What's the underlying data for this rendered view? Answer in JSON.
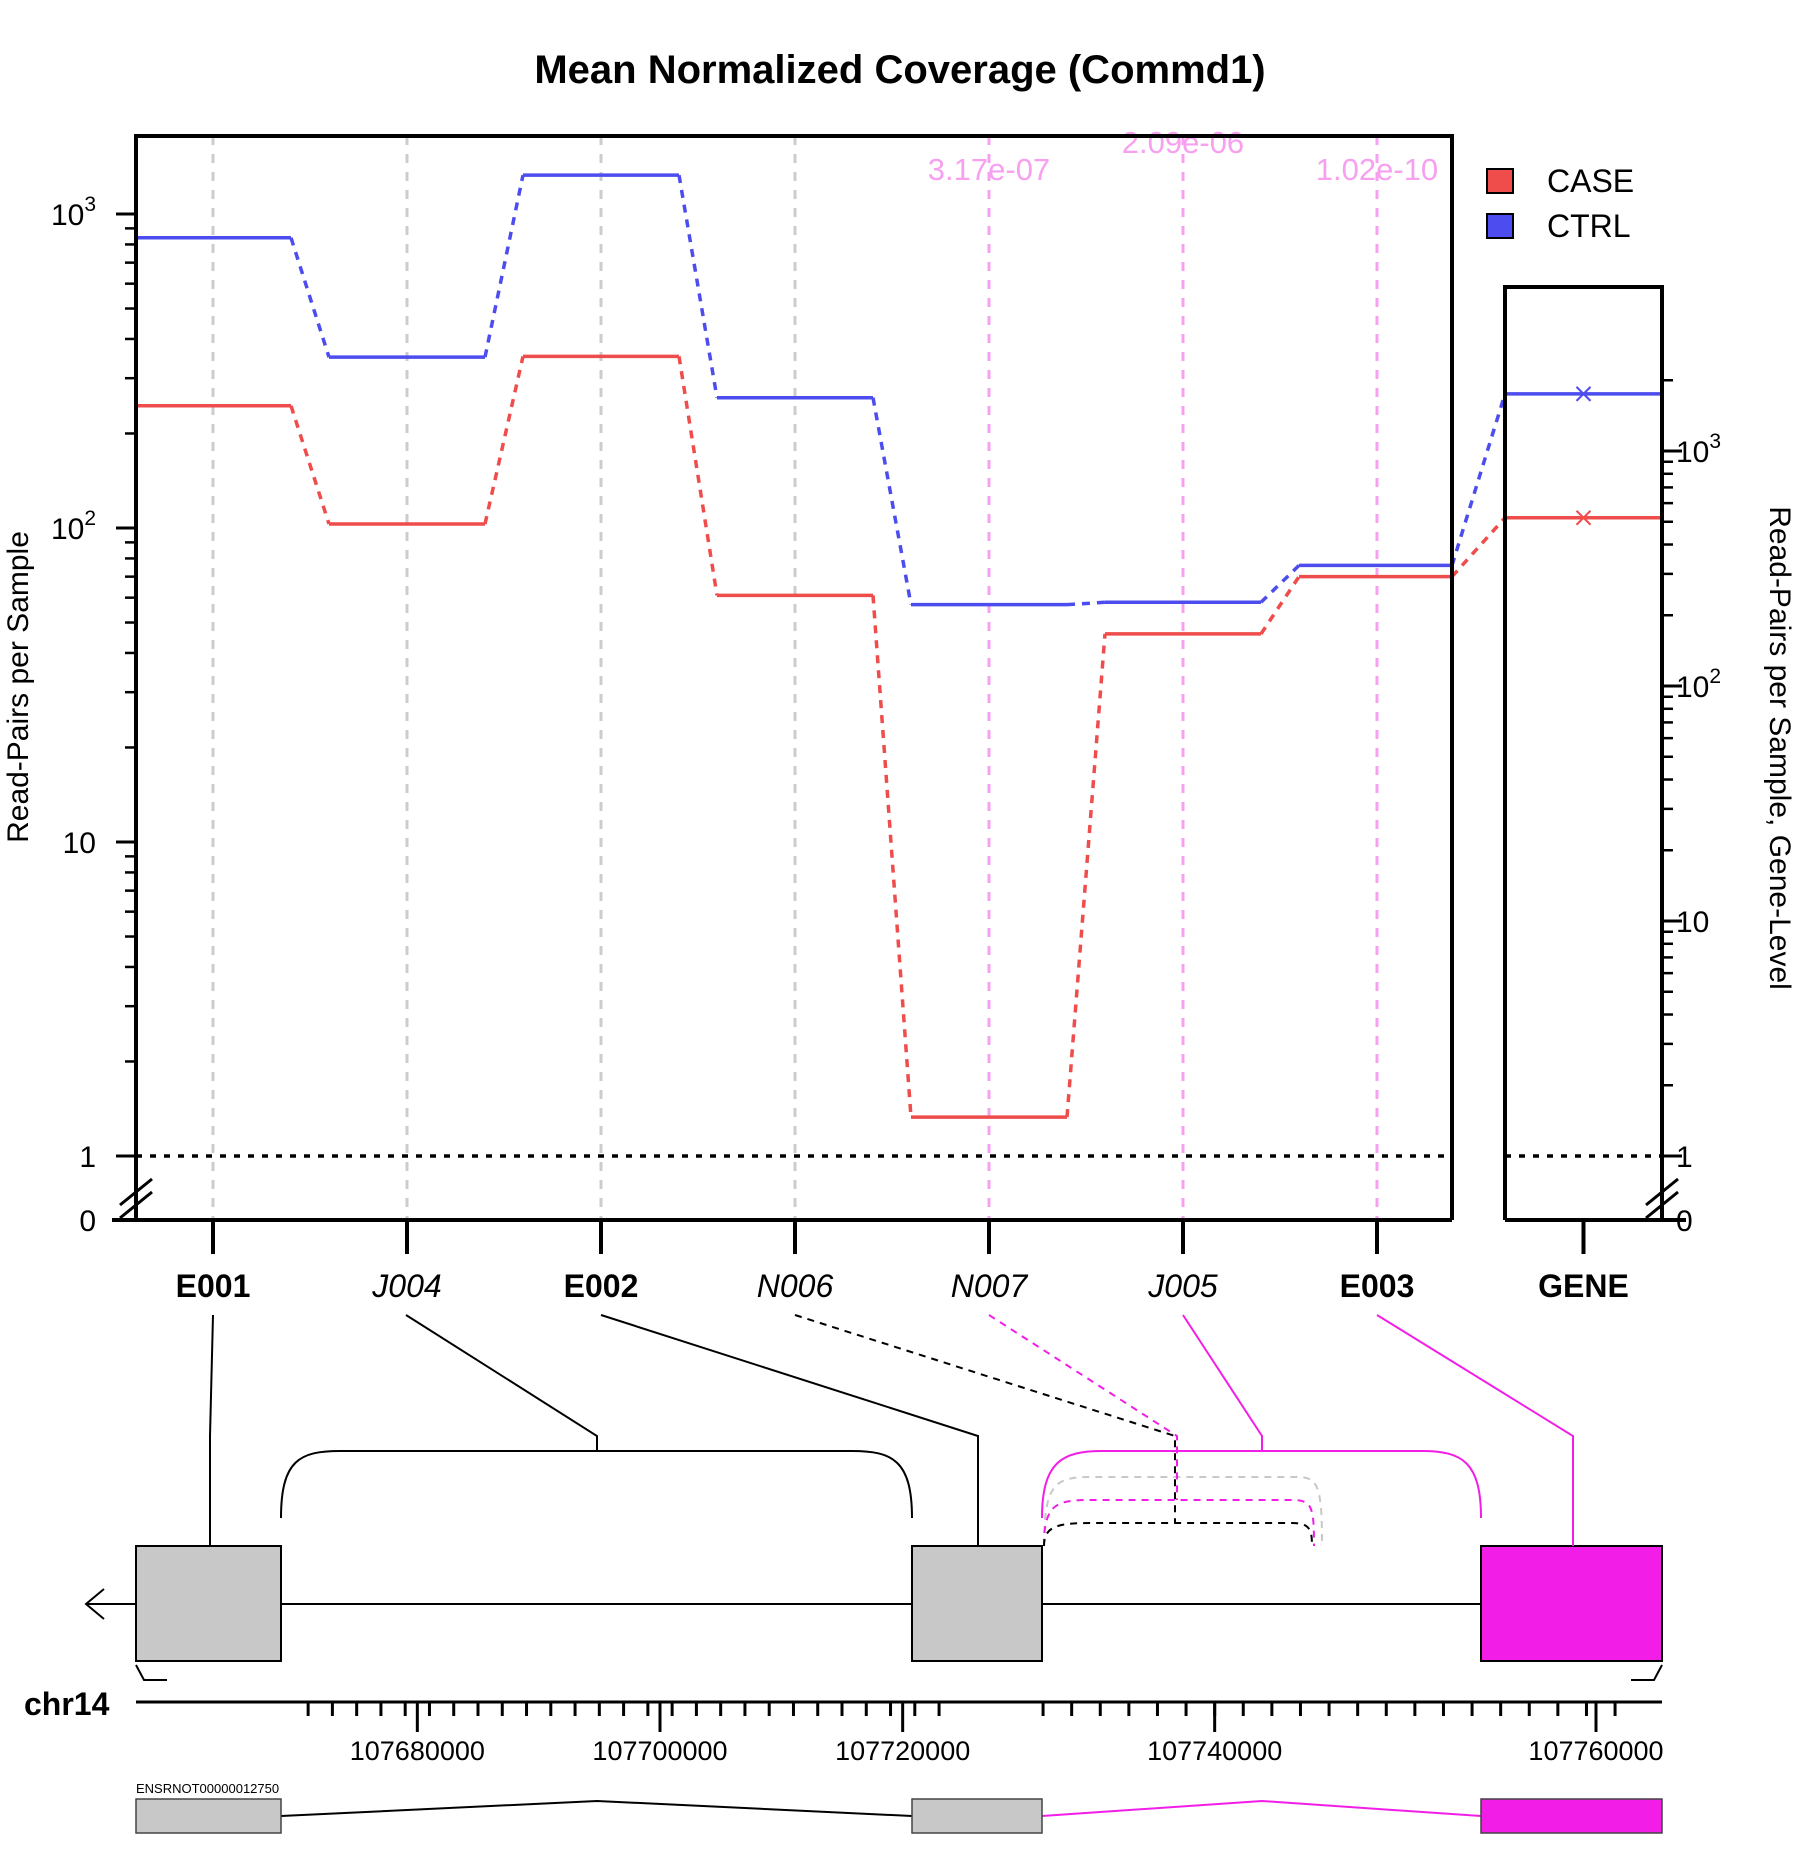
{
  "chart_data": {
    "type": "line",
    "title": "Mean Normalized Coverage (Commd1)",
    "ylabel": "Read-Pairs per Sample",
    "ylabel_right": "Read-Pairs per Sample, Gene-Level",
    "y_scale": "log",
    "y_ticks": [
      {
        "value": 0,
        "label": "0"
      },
      {
        "value": 1,
        "label": "1"
      },
      {
        "value": 10,
        "label": "10"
      },
      {
        "value": 100,
        "label": "10",
        "exp": "2"
      },
      {
        "value": 1000,
        "label": "10",
        "exp": "3"
      }
    ],
    "features": [
      {
        "id": "E001",
        "style": "exon"
      },
      {
        "id": "J004",
        "style": "junction"
      },
      {
        "id": "E002",
        "style": "exon"
      },
      {
        "id": "N006",
        "style": "junction"
      },
      {
        "id": "N007",
        "style": "junction"
      },
      {
        "id": "J005",
        "style": "junction"
      },
      {
        "id": "E003",
        "style": "exon"
      }
    ],
    "gene_label": "GENE",
    "series": [
      {
        "name": "CASE",
        "color": "#ef4c4c",
        "values": [
          245,
          103,
          352,
          61,
          1.33,
          46,
          70
        ],
        "gene": 520
      },
      {
        "name": "CTRL",
        "color": "#4c4cef",
        "values": [
          840,
          350,
          1330,
          260,
          57,
          58,
          76
        ],
        "gene": 1750
      }
    ],
    "significant": [
      {
        "feature": "N007",
        "pvalue": "3.17e-07"
      },
      {
        "feature": "J005",
        "pvalue": "2.09e-06"
      },
      {
        "feature": "E003",
        "pvalue": "1.02e-10"
      }
    ],
    "significance_color": "#f7a0f0",
    "highlight_color": "#f21ee8",
    "reference_line": 1,
    "legend_position": "top-right",
    "grid": false
  },
  "gene_model": {
    "chrom": "chr14",
    "transcript_id": "ENSRNOT00000012750",
    "strand": "-",
    "coord_ticks": [
      {
        "value": 107680000,
        "label": "107680000"
      },
      {
        "value": 107700000,
        "label": "107700000"
      },
      {
        "value": 107720000,
        "label": "107720000"
      },
      {
        "value": 107740000,
        "label": "107740000"
      },
      {
        "value": 107760000,
        "label": "107760000"
      }
    ]
  }
}
